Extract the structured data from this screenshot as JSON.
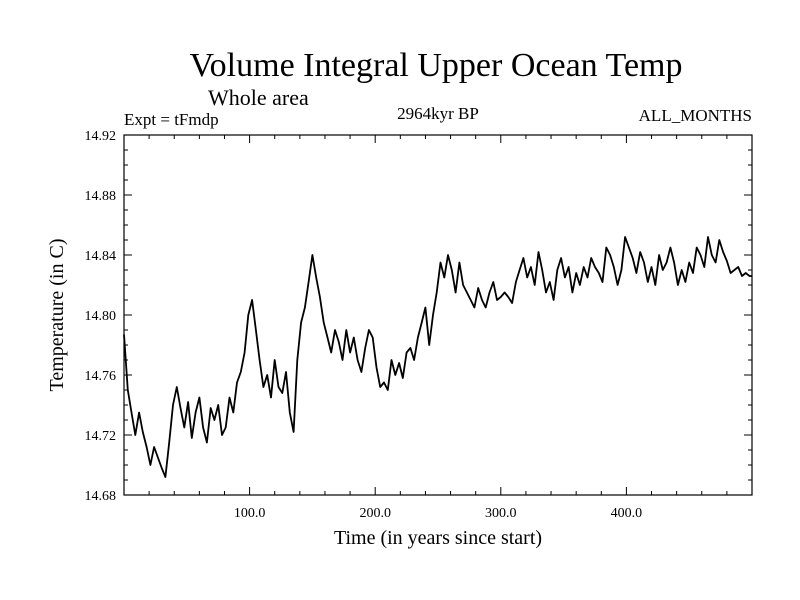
{
  "chart_data": {
    "type": "line",
    "title": "Volume Integral Upper Ocean Temp",
    "subtitle": "Whole area",
    "left_label": "Expt = tFmdp",
    "center_label": "2964kyr BP",
    "right_label": "ALL_MONTHS",
    "xlabel": "Time (in years since start)",
    "ylabel": "Temperature (in C)",
    "xlim": [
      0,
      500
    ],
    "ylim": [
      14.68,
      14.92
    ],
    "xticks": [
      100,
      200,
      300,
      400
    ],
    "xtick_labels": [
      "100.0",
      "200.0",
      "300.0",
      "400.0"
    ],
    "yticks": [
      14.68,
      14.72,
      14.76,
      14.8,
      14.84,
      14.88,
      14.92
    ],
    "ytick_labels": [
      "14.68",
      "14.72",
      "14.76",
      "14.80",
      "14.84",
      "14.88",
      "14.92"
    ],
    "grid": false,
    "series": [
      {
        "name": "Volume Integral Upper Ocean Temp",
        "color": "#000000",
        "x": [
          0,
          3,
          6,
          9,
          12,
          15,
          18,
          21,
          24,
          27,
          30,
          33,
          36,
          39,
          42,
          45,
          48,
          51,
          54,
          57,
          60,
          63,
          66,
          69,
          72,
          75,
          78,
          81,
          84,
          87,
          90,
          93,
          96,
          99,
          102,
          105,
          108,
          111,
          114,
          117,
          120,
          123,
          126,
          129,
          132,
          135,
          138,
          141,
          144,
          147,
          150,
          153,
          156,
          159,
          162,
          165,
          168,
          171,
          174,
          177,
          180,
          183,
          186,
          189,
          192,
          195,
          198,
          201,
          204,
          207,
          210,
          213,
          216,
          219,
          222,
          225,
          228,
          231,
          234,
          237,
          240,
          243,
          246,
          249,
          252,
          255,
          258,
          261,
          264,
          267,
          270,
          273,
          276,
          279,
          282,
          285,
          288,
          291,
          294,
          297,
          300,
          303,
          306,
          309,
          312,
          315,
          318,
          321,
          324,
          327,
          330,
          333,
          336,
          339,
          342,
          345,
          348,
          351,
          354,
          357,
          360,
          363,
          366,
          369,
          372,
          375,
          378,
          381,
          384,
          387,
          390,
          393,
          396,
          399,
          402,
          405,
          408,
          411,
          414,
          417,
          420,
          423,
          426,
          429,
          432,
          435,
          438,
          441,
          444,
          447,
          450,
          453,
          456,
          459,
          462,
          465,
          468,
          471,
          474,
          477,
          480,
          483,
          486,
          489,
          492,
          495,
          498,
          500
        ],
        "values": [
          14.787,
          14.75,
          14.735,
          14.72,
          14.735,
          14.722,
          14.712,
          14.7,
          14.712,
          14.705,
          14.698,
          14.692,
          14.715,
          14.74,
          14.752,
          14.738,
          14.725,
          14.742,
          14.718,
          14.735,
          14.745,
          14.725,
          14.715,
          14.738,
          14.73,
          14.74,
          14.72,
          14.725,
          14.745,
          14.735,
          14.755,
          14.762,
          14.775,
          14.8,
          14.81,
          14.79,
          14.77,
          14.752,
          14.76,
          14.745,
          14.77,
          14.752,
          14.748,
          14.762,
          14.735,
          14.722,
          14.77,
          14.795,
          14.805,
          14.822,
          14.84,
          14.825,
          14.812,
          14.795,
          14.785,
          14.775,
          14.79,
          14.782,
          14.77,
          14.79,
          14.775,
          14.785,
          14.77,
          14.762,
          14.778,
          14.79,
          14.785,
          14.765,
          14.752,
          14.755,
          14.75,
          14.77,
          14.76,
          14.768,
          14.758,
          14.775,
          14.778,
          14.77,
          14.785,
          14.795,
          14.805,
          14.78,
          14.8,
          14.815,
          14.835,
          14.825,
          14.84,
          14.83,
          14.815,
          14.835,
          14.82,
          14.815,
          14.81,
          14.805,
          14.818,
          14.81,
          14.805,
          14.815,
          14.822,
          14.81,
          14.812,
          14.815,
          14.812,
          14.808,
          14.822,
          14.83,
          14.838,
          14.825,
          14.832,
          14.82,
          14.842,
          14.83,
          14.815,
          14.822,
          14.81,
          14.83,
          14.838,
          14.825,
          14.832,
          14.815,
          14.828,
          14.82,
          14.832,
          14.825,
          14.838,
          14.832,
          14.828,
          14.822,
          14.845,
          14.84,
          14.832,
          14.82,
          14.83,
          14.852,
          14.845,
          14.838,
          14.828,
          14.842,
          14.835,
          14.822,
          14.832,
          14.82,
          14.84,
          14.83,
          14.835,
          14.845,
          14.835,
          14.82,
          14.83,
          14.822,
          14.835,
          14.828,
          14.845,
          14.84,
          14.832,
          14.852,
          14.84,
          14.835,
          14.85,
          14.842,
          14.836,
          14.828,
          14.83,
          14.832,
          14.826,
          14.828,
          14.826,
          14.826
        ]
      }
    ]
  }
}
